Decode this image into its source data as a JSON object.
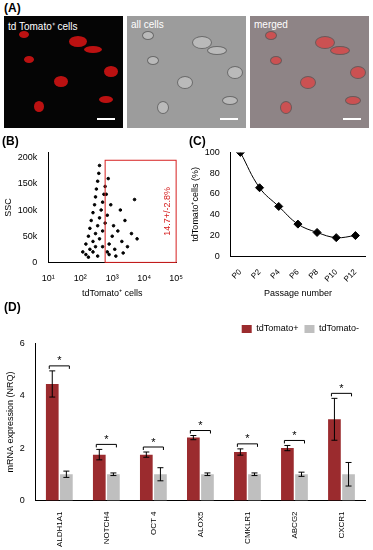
{
  "image_panel": {
    "title": "(A)",
    "images": [
      {
        "label": "td Tomato⁺ cells"
      },
      {
        "label": "all cells"
      },
      {
        "label": "merged"
      }
    ]
  },
  "chart_data": [
    {
      "type": "scatter",
      "title": "(B)",
      "x_label": "tdTomato⁺ cells",
      "y_label": "SSC",
      "log": "x",
      "grid": false,
      "color": "#000000",
      "marker": "circle",
      "x": [
        120,
        150,
        180,
        200,
        220,
        250,
        280,
        300,
        320,
        350,
        380,
        400,
        150,
        200,
        250,
        300,
        350,
        400,
        450,
        500,
        550,
        600,
        250,
        300,
        400,
        500,
        600,
        180,
        350,
        500,
        700,
        800,
        1000,
        1200,
        1500,
        2000,
        2500,
        3000,
        700,
        900,
        1100,
        1800,
        4000,
        6000,
        800,
        1300,
        2200,
        650,
        750,
        5000
      ],
      "values": [
        20000,
        35000,
        50000,
        65000,
        80000,
        95000,
        110000,
        125000,
        140000,
        155000,
        170000,
        185000,
        15000,
        25000,
        40000,
        55000,
        70000,
        85000,
        100000,
        115000,
        130000,
        145000,
        20000,
        30000,
        45000,
        60000,
        75000,
        10000,
        12000,
        30000,
        20000,
        35000,
        50000,
        25000,
        60000,
        40000,
        80000,
        30000,
        90000,
        110000,
        70000,
        100000,
        55000,
        45000,
        15000,
        12000,
        18000,
        130000,
        160000,
        120000
      ],
      "xlim": [
        10,
        100000
      ],
      "xticks": [
        {
          "value": 10,
          "label": "10¹"
        },
        {
          "value": 100,
          "label": "10²"
        },
        {
          "value": 1000,
          "label": "10³"
        },
        {
          "value": 10000,
          "label": "10⁴"
        },
        {
          "value": 100000,
          "label": "10⁵"
        }
      ],
      "ylim": [
        0,
        210000
      ],
      "yticks": [
        0,
        {
          "value": 50000,
          "label": "50k"
        },
        {
          "value": 100000,
          "label": "100k"
        },
        {
          "value": 150000,
          "label": "150k"
        },
        {
          "value": 200000,
          "label": "200k"
        }
      ],
      "gate": {
        "xlim": [
          600,
          100000
        ],
        "ylim": [
          0,
          195000
        ],
        "label": "14.7+/-2.8%"
      }
    },
    {
      "type": "line",
      "title": "(C)",
      "x_label": "Passage number",
      "y_label": "tdTomato⁺cells (%)",
      "grid": false,
      "color": "#000000",
      "marker": "diamond",
      "line_style": "solid",
      "categories": [
        "P0",
        "P2",
        "P4",
        "P6",
        "P8",
        "P10",
        "P12"
      ],
      "values": [
        100,
        66,
        48,
        31,
        23,
        18,
        20
      ],
      "ylim": [
        0,
        100
      ],
      "yticks": [
        0,
        20,
        40,
        60,
        80,
        100
      ]
    },
    {
      "type": "bar",
      "title": "(D)",
      "y_label": "mRNA expression (NRQ)",
      "grid": false,
      "legend": "top-right",
      "categories": [
        "ALDH1A1",
        "NOTCH4",
        "OCT 4",
        "ALOX5",
        "CMKLR1",
        "ABCG2",
        "CXCR1"
      ],
      "series": [
        {
          "name": "tdTomato+",
          "color": "#9b2b2e",
          "values": [
            4.45,
            1.75,
            1.75,
            2.4,
            1.85,
            2.0,
            3.1
          ],
          "errors": [
            0.5,
            0.2,
            0.1,
            0.08,
            0.12,
            0.1,
            0.8
          ]
        },
        {
          "name": "tdTomato-",
          "color": "#bfbfbf",
          "values": [
            1.0,
            1.0,
            1.0,
            1.0,
            1.0,
            1.0,
            1.0
          ],
          "errors": [
            0.12,
            0.05,
            0.25,
            0.05,
            0.05,
            0.08,
            0.45
          ]
        }
      ],
      "significance": [
        "*",
        "*",
        "*",
        "*",
        "*",
        "*",
        "*"
      ],
      "ylim": [
        0,
        6
      ],
      "yticks": [
        0,
        2,
        4,
        6
      ]
    }
  ]
}
